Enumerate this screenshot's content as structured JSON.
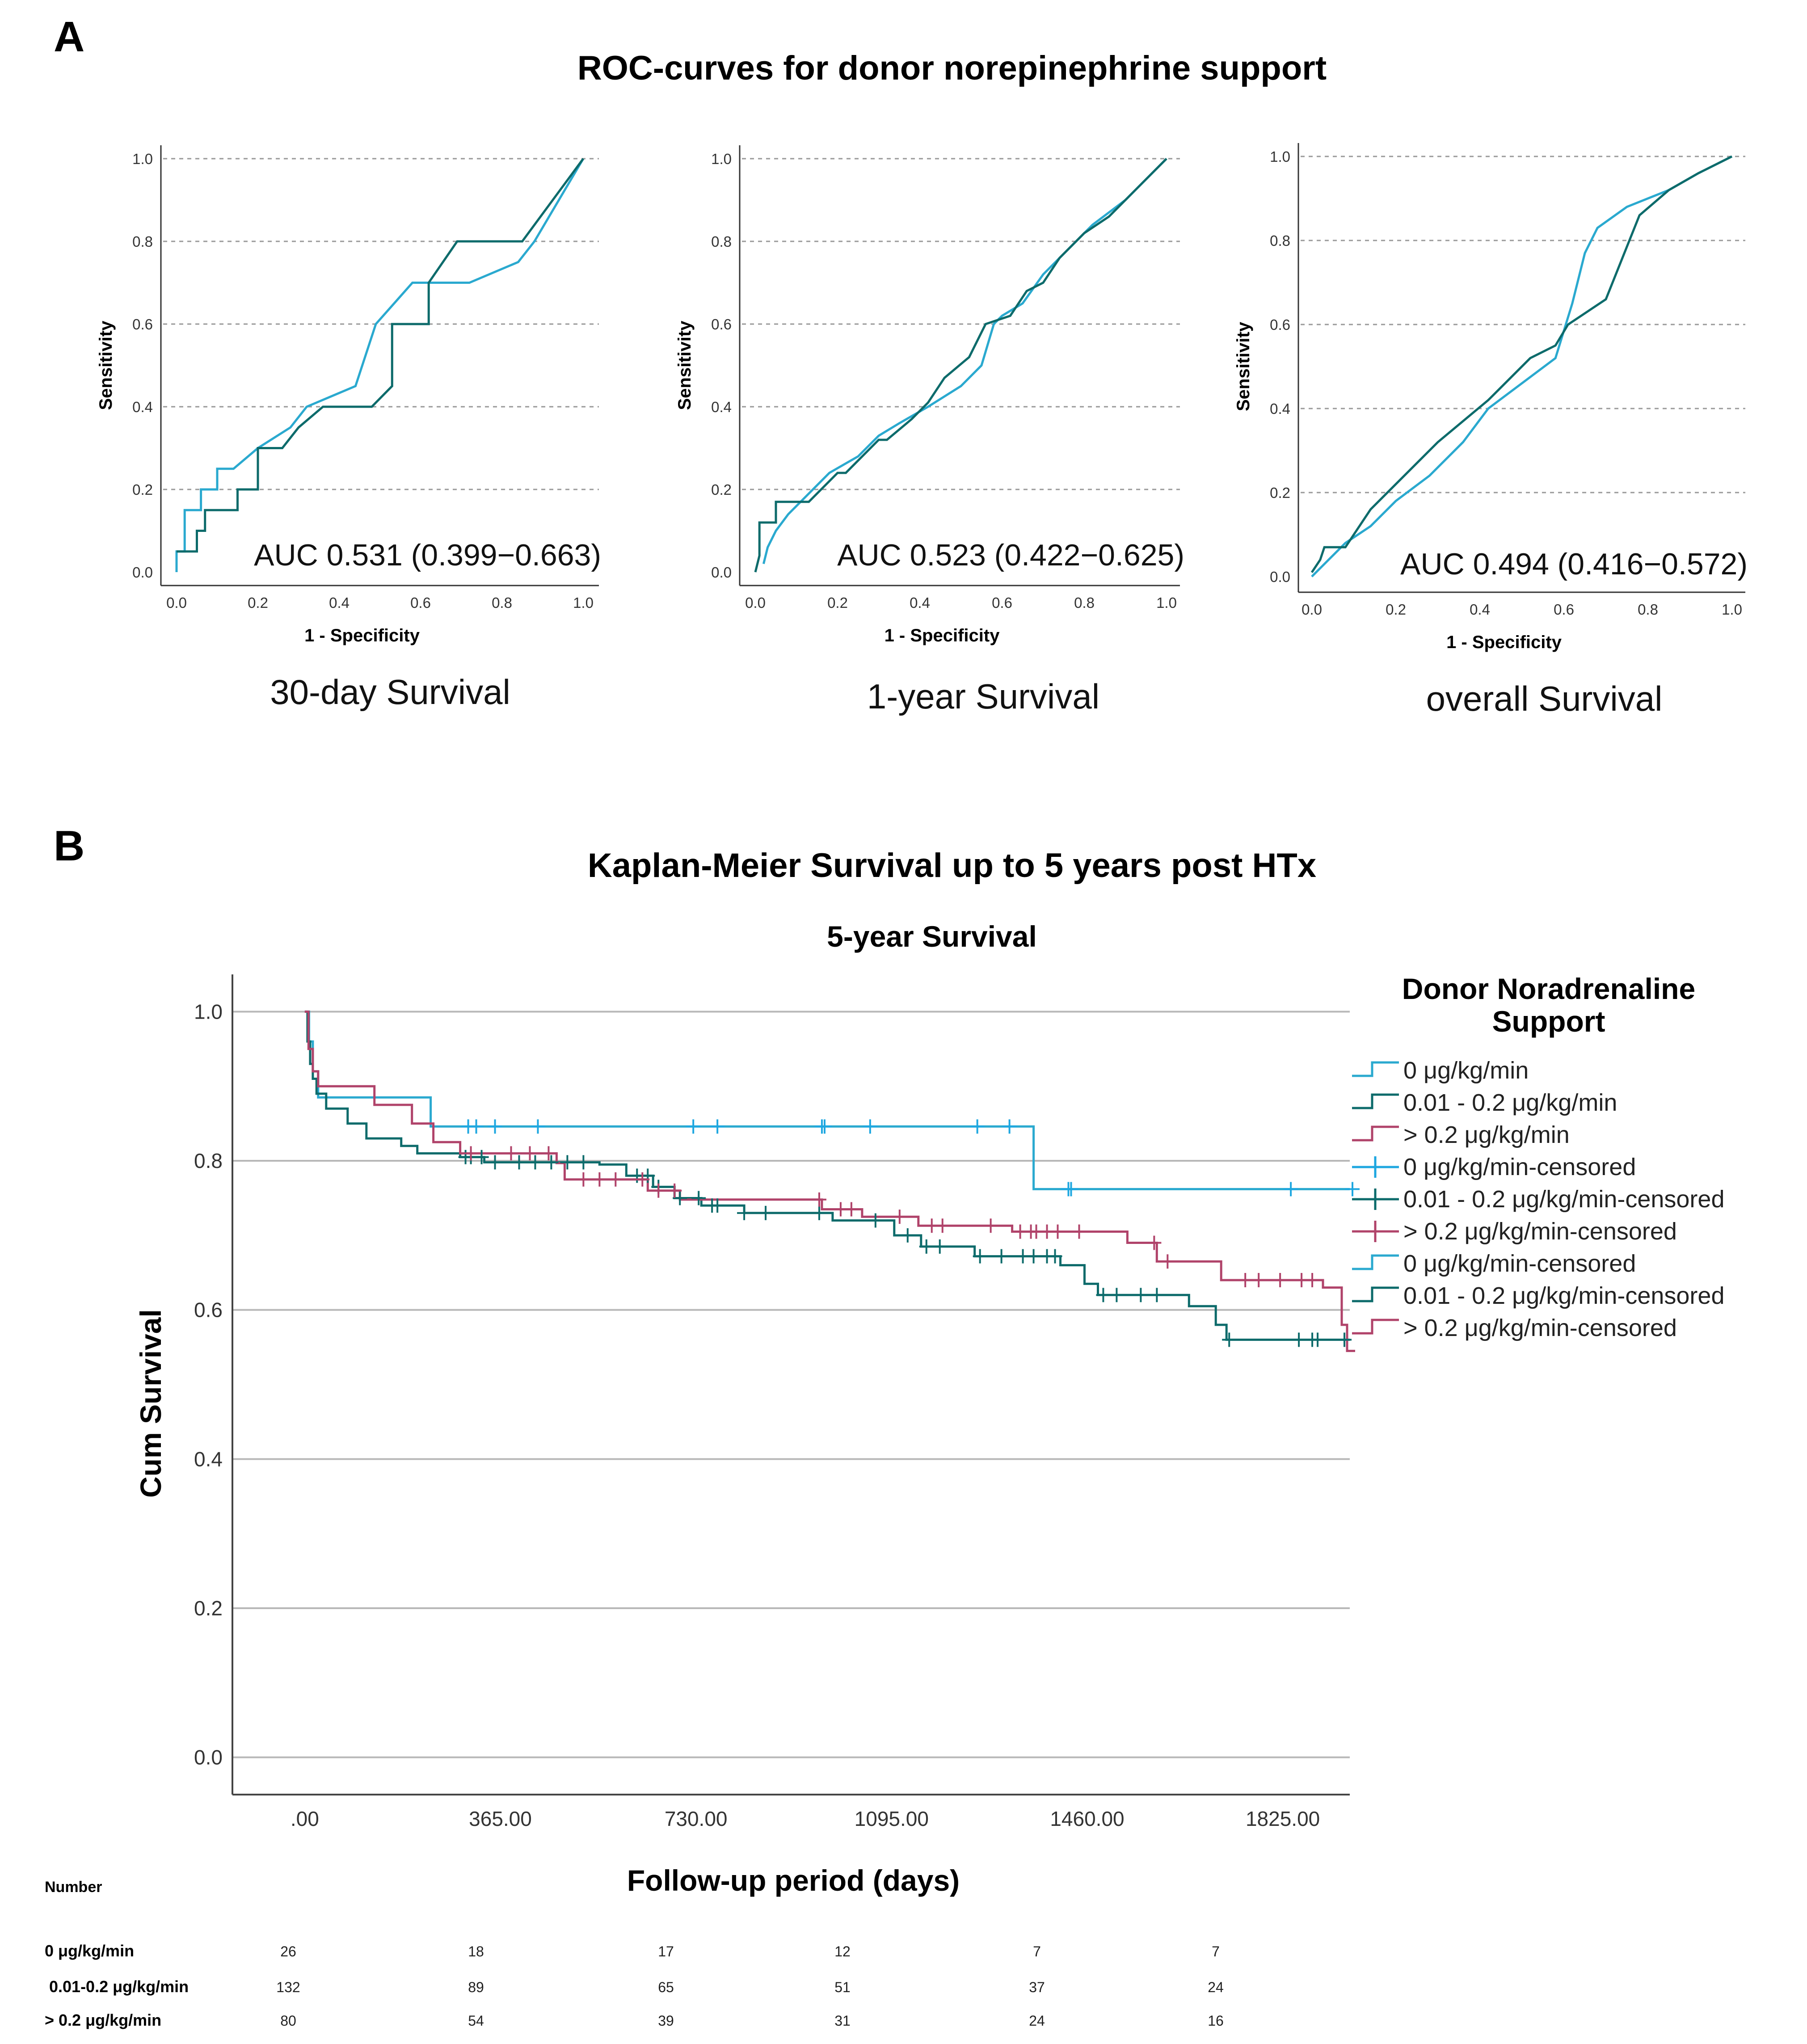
{
  "panel_a": {
    "letter": "A",
    "title": "ROC-curves for donor norepinephrine support"
  },
  "panel_b": {
    "letter": "B",
    "title": "Kaplan-Meier Survival up to 5 years post HTx"
  },
  "colors": {
    "light": "#2aa9cf",
    "dark": "#0d6b6b",
    "magenta": "#b0436a",
    "light_censor": "#1ea7e0"
  },
  "chart_data": [
    {
      "type": "line",
      "id": "roc_30day",
      "caption": "30-day Survival",
      "xlabel": "1 - Specificity",
      "ylabel": "Sensitivity",
      "xlim": [
        0,
        1
      ],
      "ylim": [
        0,
        1
      ],
      "ticks": [
        "0.0",
        "0.2",
        "0.4",
        "0.6",
        "0.8",
        "1.0"
      ],
      "grid": "dashed horizontal",
      "auc_text": "AUC 0.531 (0.399−0.663)",
      "series": [
        {
          "name": "curve-light",
          "color": "light",
          "x": [
            0,
            0,
            0.02,
            0.02,
            0.06,
            0.06,
            0.1,
            0.1,
            0.14,
            0.2,
            0.2,
            0.28,
            0.32,
            0.44,
            0.49,
            0.58,
            0.72,
            0.84,
            0.88,
            1.0
          ],
          "y": [
            0,
            0.05,
            0.05,
            0.15,
            0.15,
            0.2,
            0.2,
            0.25,
            0.25,
            0.3,
            0.3,
            0.35,
            0.4,
            0.45,
            0.6,
            0.7,
            0.7,
            0.75,
            0.8,
            1.0
          ]
        },
        {
          "name": "curve-dark",
          "color": "dark",
          "x": [
            0,
            0.05,
            0.05,
            0.07,
            0.07,
            0.15,
            0.15,
            0.19,
            0.2,
            0.2,
            0.26,
            0.3,
            0.36,
            0.48,
            0.53,
            0.53,
            0.62,
            0.62,
            0.69,
            0.85,
            1.0
          ],
          "y": [
            0.05,
            0.05,
            0.1,
            0.1,
            0.15,
            0.15,
            0.2,
            0.2,
            0.2,
            0.3,
            0.3,
            0.35,
            0.4,
            0.4,
            0.45,
            0.6,
            0.6,
            0.7,
            0.8,
            0.8,
            1.0
          ]
        }
      ]
    },
    {
      "type": "line",
      "id": "roc_1year",
      "caption": "1-year Survival",
      "xlabel": "1 - Specificity",
      "ylabel": "Sensitivity",
      "xlim": [
        0,
        1
      ],
      "ylim": [
        0,
        1
      ],
      "ticks": [
        "0.0",
        "0.2",
        "0.4",
        "0.6",
        "0.8",
        "1.0"
      ],
      "grid": "dashed horizontal",
      "auc_text": "AUC 0.523 (0.422−0.625)",
      "series": [
        {
          "name": "curve-light",
          "color": "light",
          "x": [
            0.02,
            0.03,
            0.05,
            0.08,
            0.12,
            0.18,
            0.25,
            0.3,
            0.35,
            0.42,
            0.5,
            0.55,
            0.58,
            0.6,
            0.65,
            0.7,
            0.76,
            0.82,
            0.9,
            1.0
          ],
          "y": [
            0.02,
            0.06,
            0.1,
            0.14,
            0.18,
            0.24,
            0.28,
            0.33,
            0.36,
            0.4,
            0.45,
            0.5,
            0.6,
            0.62,
            0.65,
            0.72,
            0.78,
            0.84,
            0.9,
            1.0
          ],
          "closing": true
        },
        {
          "name": "curve-dark",
          "color": "dark",
          "x": [
            0,
            0.01,
            0.01,
            0.05,
            0.05,
            0.13,
            0.2,
            0.22,
            0.3,
            0.32,
            0.38,
            0.42,
            0.46,
            0.52,
            0.56,
            0.62,
            0.66,
            0.7,
            0.74,
            0.8,
            0.86,
            0.92,
            1.0
          ],
          "y": [
            0,
            0.04,
            0.12,
            0.12,
            0.17,
            0.17,
            0.24,
            0.24,
            0.32,
            0.32,
            0.37,
            0.41,
            0.47,
            0.52,
            0.6,
            0.62,
            0.68,
            0.7,
            0.76,
            0.82,
            0.86,
            0.92,
            1.0
          ]
        }
      ]
    },
    {
      "type": "line",
      "id": "roc_overall",
      "caption": "overall Survival",
      "xlabel": "1 - Specificity",
      "ylabel": "Sensitivity",
      "xlim": [
        0,
        1
      ],
      "ylim": [
        0,
        1
      ],
      "ticks": [
        "0.0",
        "0.2",
        "0.4",
        "0.6",
        "0.8",
        "1.0"
      ],
      "grid": "dashed horizontal",
      "auc_text": "AUC 0.494 (0.416−0.572)",
      "series": [
        {
          "name": "curve-light",
          "color": "light",
          "x": [
            0,
            0.04,
            0.08,
            0.14,
            0.2,
            0.28,
            0.36,
            0.42,
            0.5,
            0.58,
            0.62,
            0.65,
            0.68,
            0.75,
            0.85,
            0.92,
            1.0
          ],
          "y": [
            0,
            0.04,
            0.08,
            0.12,
            0.18,
            0.24,
            0.32,
            0.4,
            0.46,
            0.52,
            0.65,
            0.77,
            0.83,
            0.88,
            0.92,
            0.96,
            1.0
          ]
        },
        {
          "name": "curve-dark",
          "color": "dark",
          "x": [
            0,
            0.02,
            0.03,
            0.08,
            0.1,
            0.14,
            0.2,
            0.26,
            0.3,
            0.36,
            0.42,
            0.48,
            0.52,
            0.58,
            0.61,
            0.7,
            0.74,
            0.78,
            0.85,
            0.92,
            1.0
          ],
          "y": [
            0.01,
            0.04,
            0.07,
            0.07,
            0.1,
            0.16,
            0.22,
            0.28,
            0.32,
            0.37,
            0.42,
            0.48,
            0.52,
            0.55,
            0.6,
            0.66,
            0.76,
            0.86,
            0.92,
            0.96,
            1.0
          ]
        }
      ]
    },
    {
      "type": "line",
      "id": "km_5year",
      "title": "5-year Survival",
      "xlabel": "Follow-up period (days)",
      "ylabel": "Cum Survival",
      "xlim": [
        -135,
        1950
      ],
      "ylim": [
        -0.05,
        1.05
      ],
      "x_ticks": [
        0,
        365,
        730,
        1095,
        1460,
        1825
      ],
      "x_tick_labels": [
        ".00",
        "365.00",
        "730.00",
        "1095.00",
        "1460.00",
        "1825.00"
      ],
      "y_ticks": [
        0,
        0.2,
        0.4,
        0.6,
        0.8,
        1.0
      ],
      "y_tick_labels": [
        "0.0",
        "0.2",
        "0.4",
        "0.6",
        "0.8",
        "1.0"
      ],
      "grid": "solid horizontal",
      "legend": {
        "title_lines": [
          "Donor Noradrenaline",
          "Support"
        ],
        "position": "right",
        "entries": [
          {
            "label": "0 μg/kg/min",
            "marker": "step",
            "color": "light"
          },
          {
            "label": "0.01 - 0.2 μg/kg/min",
            "marker": "step",
            "color": "dark"
          },
          {
            "label": "> 0.2 μg/kg/min",
            "marker": "step",
            "color": "magenta"
          },
          {
            "label": "0 μg/kg/min-censored",
            "marker": "plus",
            "color": "light_censor"
          },
          {
            "label": "0.01 - 0.2 μg/kg/min-censored",
            "marker": "plus",
            "color": "dark"
          },
          {
            "label": "> 0.2 μg/kg/min-censored",
            "marker": "plus",
            "color": "magenta"
          },
          {
            "label": "0 μg/kg/min-censored",
            "marker": "step",
            "color": "light"
          },
          {
            "label": "0.01 - 0.2 μg/kg/min-censored",
            "marker": "step",
            "color": "dark"
          },
          {
            "label": "> 0.2 μg/kg/min-censored",
            "marker": "step",
            "color": "magenta"
          }
        ]
      },
      "series": [
        {
          "name": "0 μg/kg/min",
          "color": "light",
          "steps": [
            [
              0,
              1.0
            ],
            [
              8,
              0.96
            ],
            [
              15,
              0.92
            ],
            [
              25,
              0.885
            ],
            [
              235,
              0.846
            ],
            [
              1360,
              0.762
            ],
            [
              1420,
              0.762
            ],
            [
              1950,
              0.762
            ]
          ],
          "censored_x": [
            305,
            320,
            355,
            435,
            725,
            770,
            965,
            970,
            1055,
            1255,
            1315,
            1425,
            1430,
            1840,
            1955
          ]
        },
        {
          "name": "0.01 - 0.2 μg/kg/min",
          "color": "dark",
          "steps": [
            [
              0,
              1.0
            ],
            [
              5,
              0.96
            ],
            [
              10,
              0.93
            ],
            [
              15,
              0.91
            ],
            [
              22,
              0.89
            ],
            [
              40,
              0.87
            ],
            [
              80,
              0.85
            ],
            [
              115,
              0.83
            ],
            [
              180,
              0.82
            ],
            [
              210,
              0.81
            ],
            [
              290,
              0.805
            ],
            [
              335,
              0.798
            ],
            [
              550,
              0.795
            ],
            [
              600,
              0.78
            ],
            [
              650,
              0.765
            ],
            [
              690,
              0.75
            ],
            [
              740,
              0.74
            ],
            [
              820,
              0.73
            ],
            [
              985,
              0.72
            ],
            [
              1100,
              0.7
            ],
            [
              1150,
              0.685
            ],
            [
              1250,
              0.672
            ],
            [
              1410,
              0.66
            ],
            [
              1455,
              0.635
            ],
            [
              1480,
              0.62
            ],
            [
              1650,
              0.605
            ],
            [
              1700,
              0.58
            ],
            [
              1720,
              0.56
            ],
            [
              1950,
              0.56
            ]
          ],
          "censored_x": [
            300,
            310,
            330,
            355,
            400,
            430,
            460,
            490,
            520,
            620,
            640,
            660,
            700,
            735,
            760,
            770,
            820,
            860,
            960,
            1065,
            1125,
            1160,
            1185,
            1260,
            1300,
            1340,
            1360,
            1385,
            1400,
            1490,
            1515,
            1560,
            1590,
            1725,
            1855,
            1880,
            1890,
            1940
          ]
        },
        {
          "name": "> 0.2 μg/kg/min",
          "color": "magenta",
          "steps": [
            [
              0,
              1.0
            ],
            [
              7,
              0.95
            ],
            [
              15,
              0.92
            ],
            [
              25,
              0.9
            ],
            [
              130,
              0.875
            ],
            [
              200,
              0.85
            ],
            [
              240,
              0.825
            ],
            [
              290,
              0.81
            ],
            [
              470,
              0.797
            ],
            [
              485,
              0.775
            ],
            [
              640,
              0.76
            ],
            [
              700,
              0.748
            ],
            [
              965,
              0.735
            ],
            [
              1040,
              0.725
            ],
            [
              1145,
              0.713
            ],
            [
              1320,
              0.705
            ],
            [
              1535,
              0.69
            ],
            [
              1590,
              0.665
            ],
            [
              1710,
              0.64
            ],
            [
              1900,
              0.63
            ],
            [
              1935,
              0.58
            ],
            [
              1945,
              0.545
            ],
            [
              1960,
              0.545
            ]
          ],
          "censored_x": [
            310,
            385,
            420,
            455,
            520,
            550,
            580,
            630,
            660,
            690,
            960,
            1000,
            1020,
            1110,
            1170,
            1190,
            1280,
            1335,
            1355,
            1365,
            1385,
            1405,
            1445,
            1585,
            1610,
            1755,
            1780,
            1820,
            1860,
            1880
          ]
        }
      ]
    }
  ],
  "risk_table": {
    "header": "Number",
    "groups": [
      {
        "label": "0 μg/kg/min",
        "values": [
          "26",
          "18",
          "17",
          "12",
          "7",
          "7"
        ]
      },
      {
        "label": "0.01-0.2 μg/kg/min",
        "values": [
          "132",
          "89",
          "65",
          "51",
          "37",
          "24"
        ]
      },
      {
        "label": "> 0.2 μg/kg/min",
        "values": [
          "80",
          "54",
          "39",
          "31",
          "24",
          "16"
        ]
      }
    ]
  }
}
